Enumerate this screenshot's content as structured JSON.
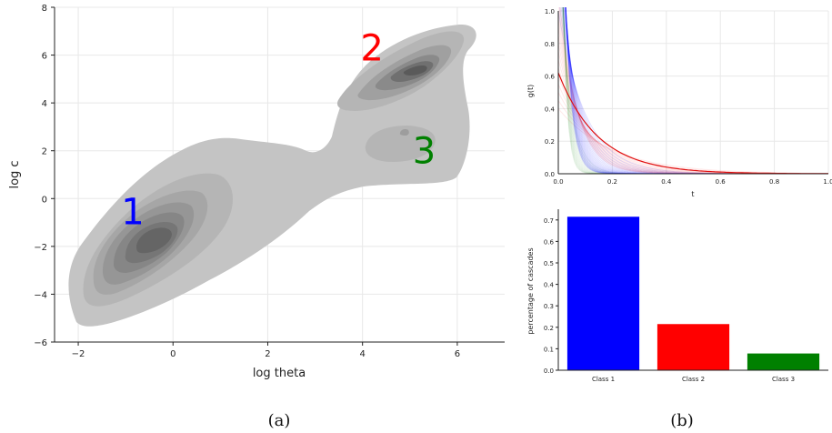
{
  "chart_data": [
    {
      "type": "heatmap",
      "subtype": "density-contour",
      "xlabel": "log theta",
      "ylabel": "log c",
      "xlim": [
        -2.5,
        7
      ],
      "ylim": [
        -6,
        8
      ],
      "xticks": [
        -2,
        0,
        2,
        4,
        6
      ],
      "yticks": [
        -6,
        -4,
        -2,
        0,
        2,
        4,
        6,
        8
      ],
      "grid": true,
      "cluster_labels": [
        {
          "text": "1",
          "color": "#0000ff",
          "x": -0.85,
          "y": -0.65
        },
        {
          "text": "2",
          "color": "#ff0000",
          "x": 4.2,
          "y": 6.2
        },
        {
          "text": "3",
          "color": "#008000",
          "x": 5.3,
          "y": 1.9
        }
      ],
      "peaks": [
        {
          "x": -0.3,
          "y": -1.7
        },
        {
          "x": 5.0,
          "y": 5.3
        },
        {
          "x": 4.9,
          "y": 2.7
        }
      ],
      "caption": "(a)"
    },
    {
      "type": "line",
      "xlabel": "t",
      "ylabel": "g(t)",
      "xlim": [
        0,
        1.0
      ],
      "ylim": [
        0,
        1.0
      ],
      "xticks": [
        "0.0",
        "0.2",
        "0.4",
        "0.6",
        "0.8",
        "1.0"
      ],
      "yticks": [
        "0.0",
        "0.2",
        "0.4",
        "0.6",
        "0.8",
        "1.0"
      ],
      "grid": true,
      "highlighted_series": {
        "color": "#e01010",
        "g0": 0.62,
        "decay": 6.8
      },
      "background_curve_colors": [
        "#0000ff",
        "#ff0000",
        "#008000"
      ]
    },
    {
      "type": "bar",
      "ylabel": "percentage of cascades",
      "categories": [
        "Class 1",
        "Class 2",
        "Class 3"
      ],
      "values": [
        0.715,
        0.215,
        0.078
      ],
      "colors": [
        "#0000ff",
        "#ff0000",
        "#008000"
      ],
      "ylim": [
        0,
        0.75
      ],
      "yticks": [
        "0.0",
        "0.1",
        "0.2",
        "0.3",
        "0.4",
        "0.5",
        "0.6",
        "0.7"
      ],
      "caption": "(b)"
    }
  ]
}
